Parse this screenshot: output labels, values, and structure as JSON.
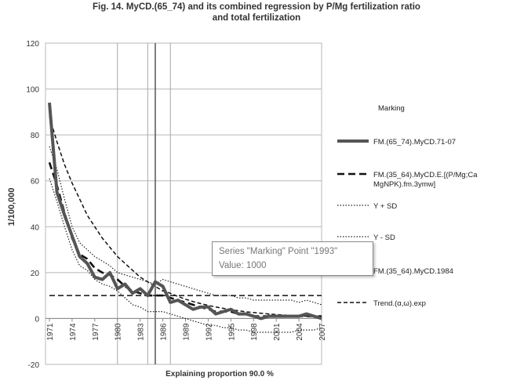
{
  "chart_data": {
    "type": "line",
    "title": "Fig. 14. MyCD.(65_74) and its combined regression by P/Mg fertilization ratio and total fertilization",
    "title_lines": [
      "Fig. 14. MyCD.(65_74) and its combined regression by P/Mg fertilization ratio",
      "and total fertilization"
    ],
    "xlabel": "Explaining proportion 90.0 %",
    "ylabel": "1/100,000",
    "ylim": [
      -20,
      120
    ],
    "yticks": [
      -20,
      0,
      20,
      40,
      60,
      80,
      100,
      120
    ],
    "xlim": [
      1971,
      2007
    ],
    "xtick_labels": [
      "1971",
      "1974",
      "1977",
      "1980",
      "1983",
      "1986",
      "1989",
      "1992",
      "1995",
      "1998",
      "2001",
      "2004",
      "2007"
    ],
    "vertical_lines": [
      1980,
      1984,
      1987
    ],
    "marker_line": 1985,
    "legend_title": "Marking",
    "series": [
      {
        "name": "FM.(65_74).MyCD.71-07",
        "style": "thick-solid",
        "color": "#555555",
        "x": [
          1971,
          1972,
          1973,
          1974,
          1975,
          1976,
          1977,
          1978,
          1979,
          1980,
          1981,
          1982,
          1983,
          1984,
          1985,
          1986,
          1987,
          1988,
          1989,
          1990,
          1991,
          1992,
          1993,
          1994,
          1995,
          1996,
          1997,
          1998,
          1999,
          2000,
          2001,
          2002,
          2003,
          2004,
          2005,
          2006,
          2007
        ],
        "values": [
          94,
          55,
          45,
          36,
          27,
          24,
          18,
          17,
          20,
          13,
          15,
          11,
          13,
          10,
          16,
          14,
          7,
          8,
          6,
          4,
          5,
          5,
          2,
          3,
          4,
          2,
          2,
          1,
          0,
          1,
          1,
          1,
          1,
          1,
          2,
          1,
          0
        ]
      },
      {
        "name": "FM.(35_64).MyCD.E.[(P/Mg;Ca MgNPK).fm.3ymw]",
        "style": "thick-dash",
        "color": "#111111",
        "x": [
          1971,
          1972,
          1973,
          1974,
          1975,
          1976,
          1977,
          1978,
          1979,
          1980,
          1981,
          1982,
          1983,
          1984,
          1985,
          1986,
          1987,
          1988,
          1989,
          1990,
          1991,
          1992,
          1993,
          1994,
          1995,
          1996,
          1997,
          1998,
          1999,
          2000,
          2001,
          2002,
          2003,
          2004,
          2005,
          2006,
          2007
        ],
        "values": [
          68,
          58,
          46,
          35,
          28,
          26,
          22,
          20,
          19,
          17,
          14,
          12,
          11,
          10,
          10,
          10,
          9,
          8,
          7,
          6,
          5,
          4,
          3,
          3,
          3,
          2,
          2,
          1,
          1,
          1,
          1,
          1,
          1,
          1,
          1,
          1,
          1
        ]
      },
      {
        "name": "Y + SD",
        "style": "dotted",
        "color": "#222222",
        "x": [
          1971,
          1972,
          1973,
          1974,
          1975,
          1976,
          1977,
          1978,
          1979,
          1980,
          1981,
          1982,
          1983,
          1984,
          1985,
          1986,
          1987,
          1988,
          1989,
          1990,
          1991,
          1992,
          1993,
          1994,
          1995,
          1996,
          1997,
          1998,
          1999,
          2000,
          2001,
          2002,
          2003,
          2004,
          2005,
          2006,
          2007
        ],
        "values": [
          75,
          65,
          52,
          40,
          33,
          30,
          27,
          25,
          23,
          20,
          19,
          18,
          17,
          16,
          15,
          17,
          16,
          15,
          14,
          13,
          12,
          11,
          10,
          10,
          10,
          9,
          9,
          8,
          8,
          8,
          8,
          8,
          8,
          7,
          8,
          7,
          6
        ]
      },
      {
        "name": "Y - SD",
        "style": "dotted",
        "color": "#222222",
        "x": [
          1971,
          1972,
          1973,
          1974,
          1975,
          1976,
          1977,
          1978,
          1979,
          1980,
          1981,
          1982,
          1983,
          1984,
          1985,
          1986,
          1987,
          1988,
          1989,
          1990,
          1991,
          1992,
          1993,
          1994,
          1995,
          1996,
          1997,
          1998,
          1999,
          2000,
          2001,
          2002,
          2003,
          2004,
          2005,
          2006,
          2007
        ],
        "values": [
          61,
          51,
          40,
          30,
          23,
          21,
          17,
          15,
          14,
          12,
          9,
          6,
          5,
          3,
          3,
          3,
          2,
          1,
          0,
          -1,
          -2,
          -3,
          -3,
          -4,
          -4,
          -5,
          -5,
          -6,
          -6,
          -6,
          -6,
          -6,
          -6,
          -5,
          -5,
          -5,
          -4
        ]
      },
      {
        "name": "FM.(35_64).MyCD.1984",
        "style": "none",
        "color": "#333333",
        "x": [],
        "values": []
      },
      {
        "name": "Trend.(α,ω).exp",
        "style": "dashed",
        "color": "#111111",
        "x": [
          1971,
          1972,
          1973,
          1974,
          1975,
          1976,
          1977,
          1978,
          1979,
          1980,
          1981,
          1982,
          1983,
          1984,
          1985,
          1986,
          1987,
          1988,
          1989,
          1990,
          1991,
          1992,
          1993,
          1994,
          1995,
          1996,
          1997,
          1998,
          1999,
          2000,
          2001,
          2002,
          2003,
          2004,
          2005,
          2006,
          2007
        ],
        "values": [
          88,
          77,
          67,
          59,
          52,
          45,
          40,
          35,
          31,
          27,
          24,
          21,
          18,
          16,
          14,
          12,
          11,
          9.6,
          8.4,
          7.4,
          6.5,
          5.7,
          5.0,
          4.4,
          3.8,
          3.4,
          2.9,
          2.6,
          2.3,
          2.0,
          1.7,
          1.5,
          1.3,
          1.2,
          1.0,
          0.9,
          0.8
        ]
      },
      {
        "name": "",
        "style": "horizontal",
        "color": "#111111",
        "x": [
          1971,
          2007
        ],
        "values": [
          10,
          10
        ]
      }
    ],
    "tooltip": {
      "line1": "Series \"Marking\" Point \"1993\"",
      "line2": "Value: 1000"
    }
  }
}
